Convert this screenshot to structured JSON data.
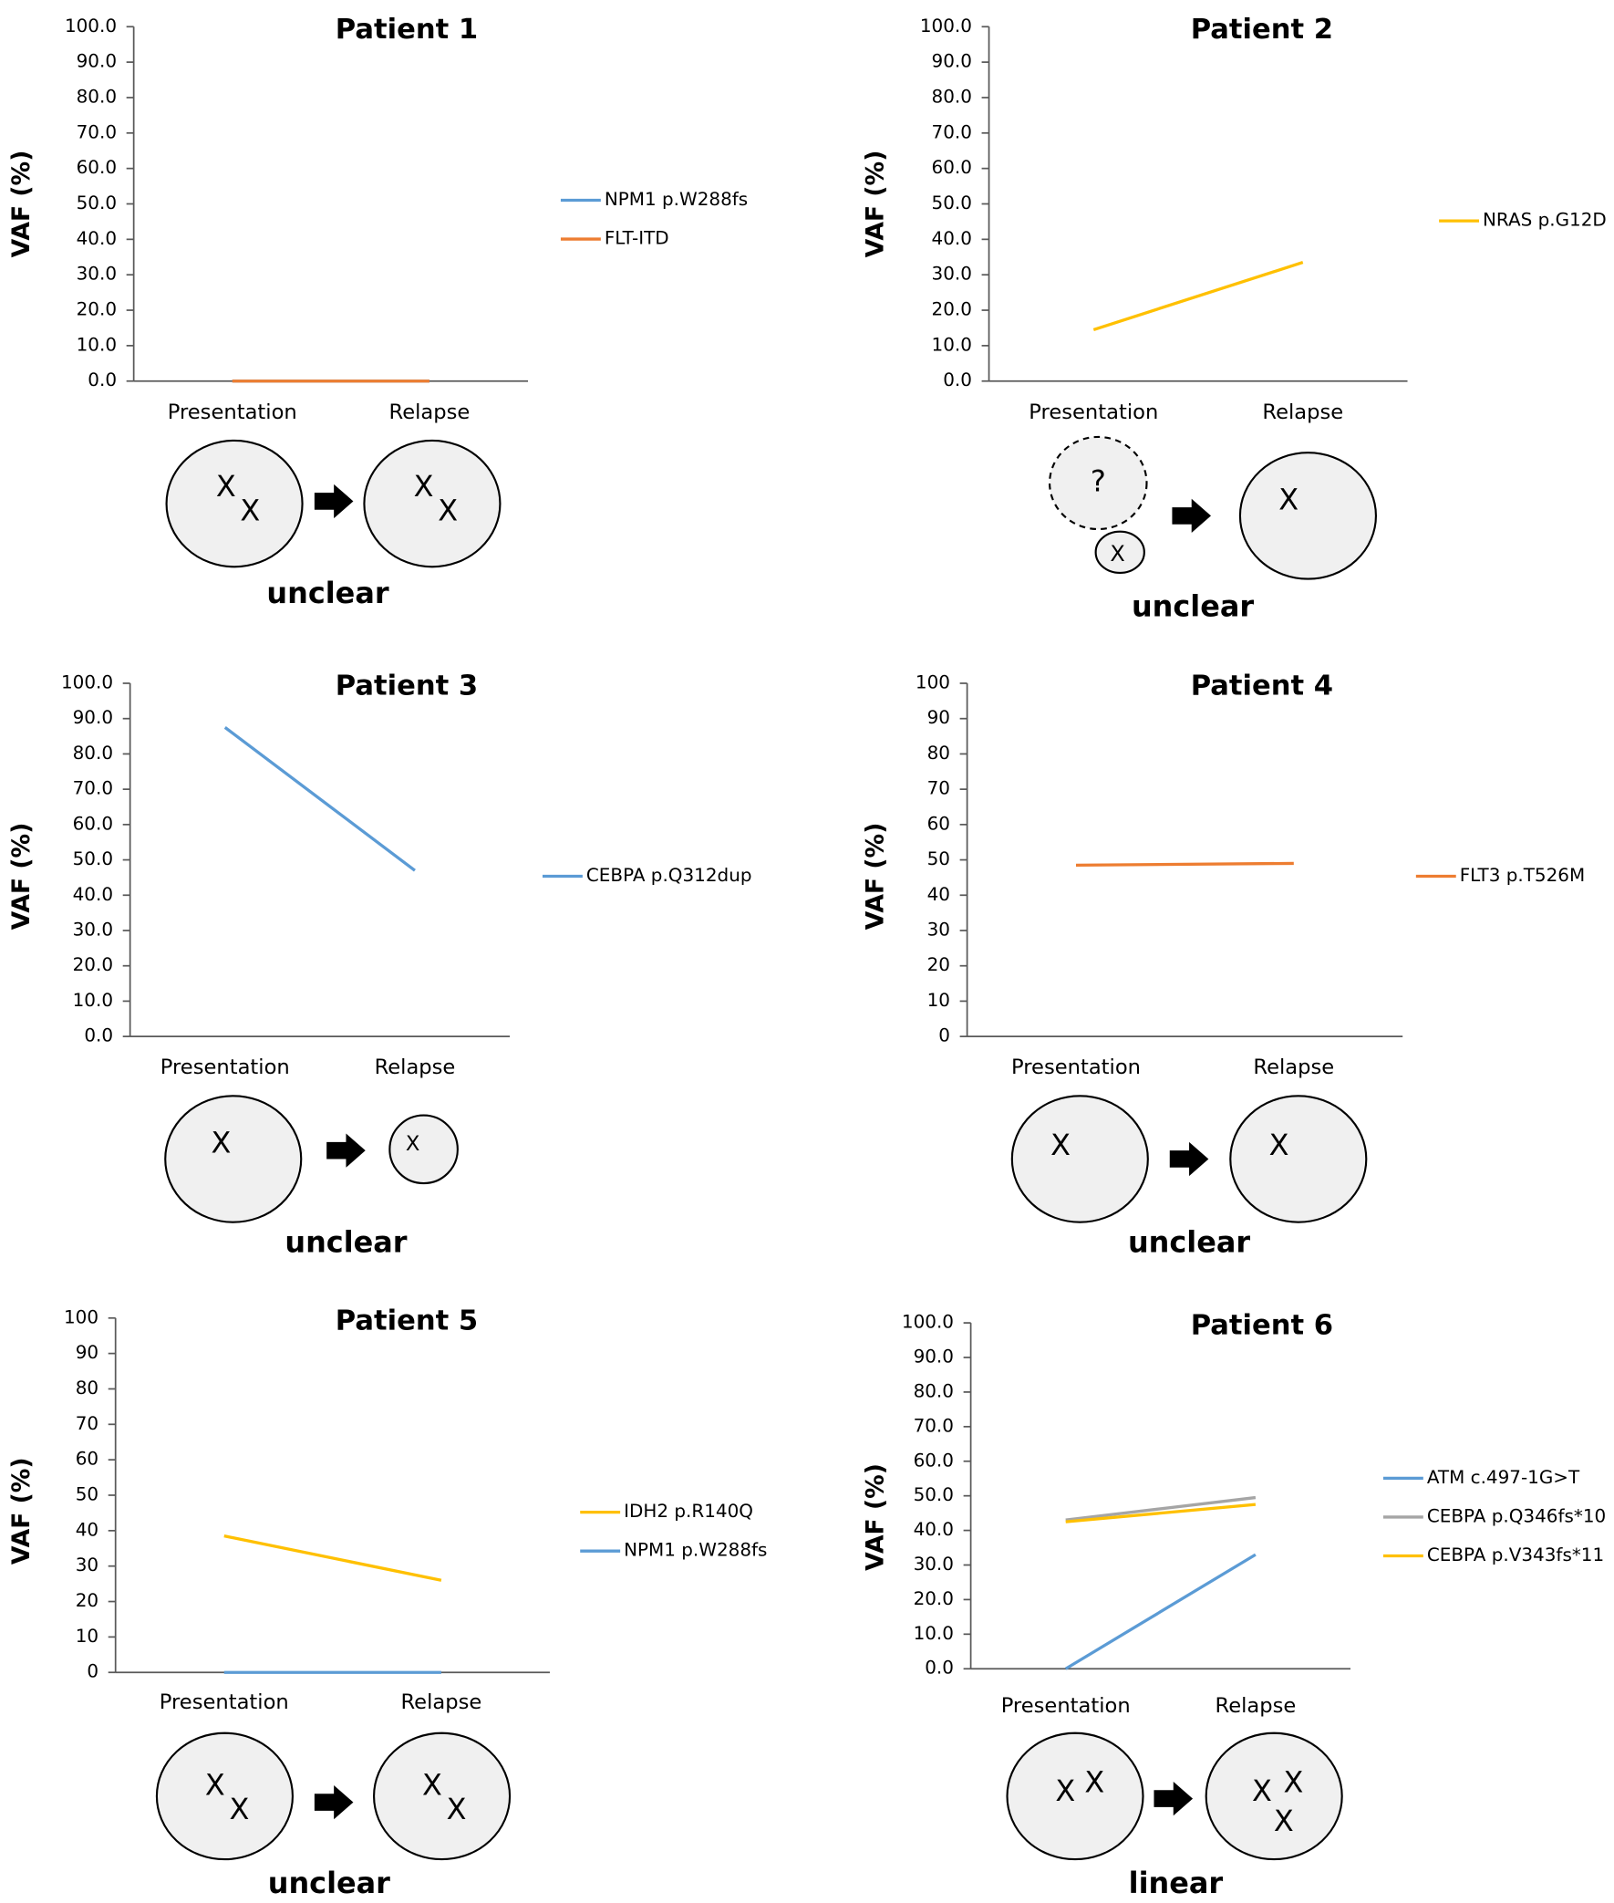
{
  "chart_data": [
    {
      "type": "line",
      "title": "Patient 1",
      "y_label": "VAF (%)",
      "categories": [
        "Presentation",
        "Relapse"
      ],
      "series": [
        {
          "name": "NPM1 p.W288fs",
          "color": "#5b9bd5",
          "values": [
            0,
            0
          ]
        },
        {
          "name": "FLT-ITD",
          "color": "#ed7d31",
          "values": [
            0,
            0
          ]
        }
      ],
      "ylim": [
        0,
        100
      ],
      "yticks": [
        {
          "value": 0,
          "label": "0.0"
        },
        {
          "value": 10,
          "label": "10.0"
        },
        {
          "value": 20,
          "label": "20.0"
        },
        {
          "value": 30,
          "label": "30.0"
        },
        {
          "value": 40,
          "label": "40.0"
        },
        {
          "value": 50,
          "label": "50.0"
        },
        {
          "value": 60,
          "label": "60.0"
        },
        {
          "value": 70,
          "label": "70.0"
        },
        {
          "value": 80,
          "label": "80.0"
        },
        {
          "value": 90,
          "label": "90.0"
        },
        {
          "value": 100,
          "label": "100.0"
        }
      ],
      "diagram": {
        "presentation": [
          [
            {
              "label": "X",
              "color": "#1f9ae0"
            },
            {
              "label": "X",
              "color": "#c55a11"
            }
          ]
        ],
        "relapse": [
          [
            {
              "label": "X",
              "color": "#1f9ae0"
            },
            {
              "label": "X",
              "color": "#c55a11"
            }
          ]
        ],
        "pattern": "unclear"
      }
    },
    {
      "type": "line",
      "title": "Patient 2",
      "y_label": "VAF (%)",
      "categories": [
        "Presentation",
        "Relapse"
      ],
      "series": [
        {
          "name": "NRAS p.G12D",
          "color": "#ffc000",
          "values": [
            14.5,
            33.5
          ]
        }
      ],
      "ylim": [
        0,
        100
      ],
      "yticks": [
        {
          "value": 0,
          "label": "0.0"
        },
        {
          "value": 10,
          "label": "10.0"
        },
        {
          "value": 20,
          "label": "20.0"
        },
        {
          "value": 30,
          "label": "30.0"
        },
        {
          "value": 40,
          "label": "40.0"
        },
        {
          "value": 50,
          "label": "50.0"
        },
        {
          "value": 60,
          "label": "60.0"
        },
        {
          "value": 70,
          "label": "70.0"
        },
        {
          "value": 80,
          "label": "80.0"
        },
        {
          "value": 90,
          "label": "90.0"
        },
        {
          "value": 100,
          "label": "100.0"
        }
      ],
      "diagram": {
        "presentation": [
          [
            {
              "label": "?",
              "color": "#000000"
            }
          ],
          [
            {
              "label": "X",
              "color": "#ffc000"
            }
          ]
        ],
        "relapse": [
          [
            {
              "label": "X",
              "color": "#ffc000"
            }
          ]
        ],
        "pattern": "unclear"
      }
    },
    {
      "type": "line",
      "title": "Patient 3",
      "y_label": "VAF (%)",
      "categories": [
        "Presentation",
        "Relapse"
      ],
      "series": [
        {
          "name": "CEBPA p.Q312dup",
          "color": "#5b9bd5",
          "values": [
            87.5,
            47
          ]
        }
      ],
      "ylim": [
        0,
        100
      ],
      "yticks": [
        {
          "value": 0,
          "label": "0.0"
        },
        {
          "value": 10,
          "label": "10.0"
        },
        {
          "value": 20,
          "label": "20.0"
        },
        {
          "value": 30,
          "label": "30.0"
        },
        {
          "value": 40,
          "label": "40.0"
        },
        {
          "value": 50,
          "label": "50.0"
        },
        {
          "value": 60,
          "label": "60.0"
        },
        {
          "value": 70,
          "label": "70.0"
        },
        {
          "value": 80,
          "label": "80.0"
        },
        {
          "value": 90,
          "label": "90.0"
        },
        {
          "value": 100,
          "label": "100.0"
        }
      ],
      "diagram": {
        "presentation": [
          [
            {
              "label": "X",
              "color": "#1f9ae0"
            }
          ]
        ],
        "relapse": [
          [
            {
              "label": "X",
              "color": "#1f9ae0"
            }
          ]
        ],
        "pattern": "unclear"
      }
    },
    {
      "type": "line",
      "title": "Patient 4",
      "y_label": "VAF (%)",
      "categories": [
        "Presentation",
        "Relapse"
      ],
      "series": [
        {
          "name": "FLT3 p.T526M",
          "color": "#ed7d31",
          "values": [
            48.5,
            49
          ]
        }
      ],
      "ylim": [
        0,
        100
      ],
      "yticks": [
        0,
        10,
        20,
        30,
        40,
        50,
        60,
        70,
        80,
        90,
        100
      ],
      "diagram": {
        "presentation": [
          [
            {
              "label": "X",
              "color": "#c55a11"
            }
          ]
        ],
        "relapse": [
          [
            {
              "label": "X",
              "color": "#c55a11"
            }
          ]
        ],
        "pattern": "unclear"
      }
    },
    {
      "type": "line",
      "title": "Patient 5",
      "y_label": "VAF (%)",
      "categories": [
        "Presentation",
        "Relapse"
      ],
      "series": [
        {
          "name": "IDH2 p.R140Q",
          "color": "#ffc000",
          "values": [
            38.5,
            26
          ]
        },
        {
          "name": "NPM1 p.W288fs",
          "color": "#5b9bd5",
          "values": [
            0,
            0
          ]
        }
      ],
      "ylim": [
        0,
        100
      ],
      "yticks": [
        0,
        10,
        20,
        30,
        40,
        50,
        60,
        70,
        80,
        90,
        100
      ],
      "diagram": {
        "presentation": [
          [
            {
              "label": "X",
              "color": "#ffc000"
            },
            {
              "label": "X",
              "color": "#1f9ae0"
            }
          ]
        ],
        "relapse": [
          [
            {
              "label": "X",
              "color": "#ffc000"
            },
            {
              "label": "X",
              "color": "#1f9ae0"
            }
          ]
        ],
        "pattern": "unclear"
      }
    },
    {
      "type": "line",
      "title": "Patient 6",
      "y_label": "VAF (%)",
      "categories": [
        "Presentation",
        "Relapse"
      ],
      "series": [
        {
          "name": "ATM c.497-1G>T",
          "color": "#5b9bd5",
          "values": [
            0,
            33
          ]
        },
        {
          "name": "CEBPA p.Q346fs*10",
          "color": "#a5a5a5",
          "values": [
            43,
            49.5
          ]
        },
        {
          "name": "CEBPA p.V343fs*11",
          "color": "#ffc000",
          "values": [
            42.5,
            47.5
          ]
        }
      ],
      "ylim": [
        0,
        100
      ],
      "yticks": [
        {
          "value": 0,
          "label": "0.0"
        },
        {
          "value": 10,
          "label": "10.0"
        },
        {
          "value": 20,
          "label": "20.0"
        },
        {
          "value": 30,
          "label": "30.0"
        },
        {
          "value": 40,
          "label": "40.0"
        },
        {
          "value": 50,
          "label": "50.0"
        },
        {
          "value": 60,
          "label": "60.0"
        },
        {
          "value": 70,
          "label": "70.0"
        },
        {
          "value": 80,
          "label": "80.0"
        },
        {
          "value": 90,
          "label": "90.0"
        },
        {
          "value": 100,
          "label": "100.0"
        }
      ],
      "diagram": {
        "presentation": [
          [
            {
              "label": "X",
              "color": "#ffc000"
            },
            {
              "label": "X",
              "color": "#a5a5a5"
            }
          ]
        ],
        "relapse": [
          [
            {
              "label": "X",
              "color": "#ffc000"
            },
            {
              "label": "X",
              "color": "#a5a5a5"
            },
            {
              "label": "X",
              "color": "#1f9ae0"
            }
          ]
        ],
        "pattern": "linear"
      }
    }
  ]
}
